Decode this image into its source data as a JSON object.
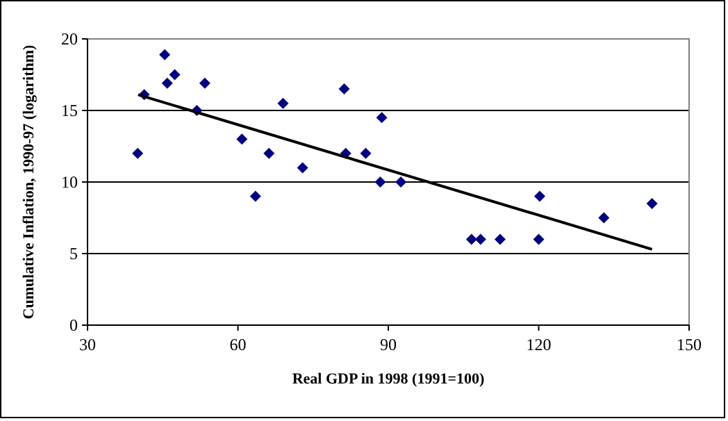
{
  "chart_data": {
    "type": "scatter",
    "xlabel": "Real GDP in 1998 (1991=100)",
    "ylabel": "Cumulative Inflation, 1990-97 (logarithm)",
    "xlim": [
      30,
      150
    ],
    "ylim": [
      0,
      20
    ],
    "xticks": [
      30,
      60,
      90,
      120,
      150
    ],
    "yticks": [
      0,
      5,
      10,
      15,
      20
    ],
    "grid": "y",
    "series": [
      {
        "color": "#000080",
        "marker": "diamond",
        "x": [
          40,
          41.3,
          45.4,
          45.9,
          47.4,
          53.4,
          51.8,
          60.8,
          63.5,
          66.2,
          69,
          72.9,
          81.2,
          81.5,
          85.5,
          88.7,
          88.4,
          92.5,
          106.6,
          108.4,
          112.3,
          120,
          120.2,
          133,
          142.6
        ],
        "values": [
          12,
          16.1,
          18.9,
          16.9,
          17.5,
          16.9,
          15,
          13,
          9,
          12,
          15.5,
          11,
          16.5,
          12,
          12,
          14.5,
          10,
          10,
          6,
          6,
          6,
          6,
          9,
          7.5,
          8.5
        ]
      },
      {
        "type": "line",
        "marker": "none",
        "color": "#000000",
        "x": [
          40.1,
          142.6
        ],
        "values": [
          16.1,
          5.3
        ]
      }
    ]
  }
}
